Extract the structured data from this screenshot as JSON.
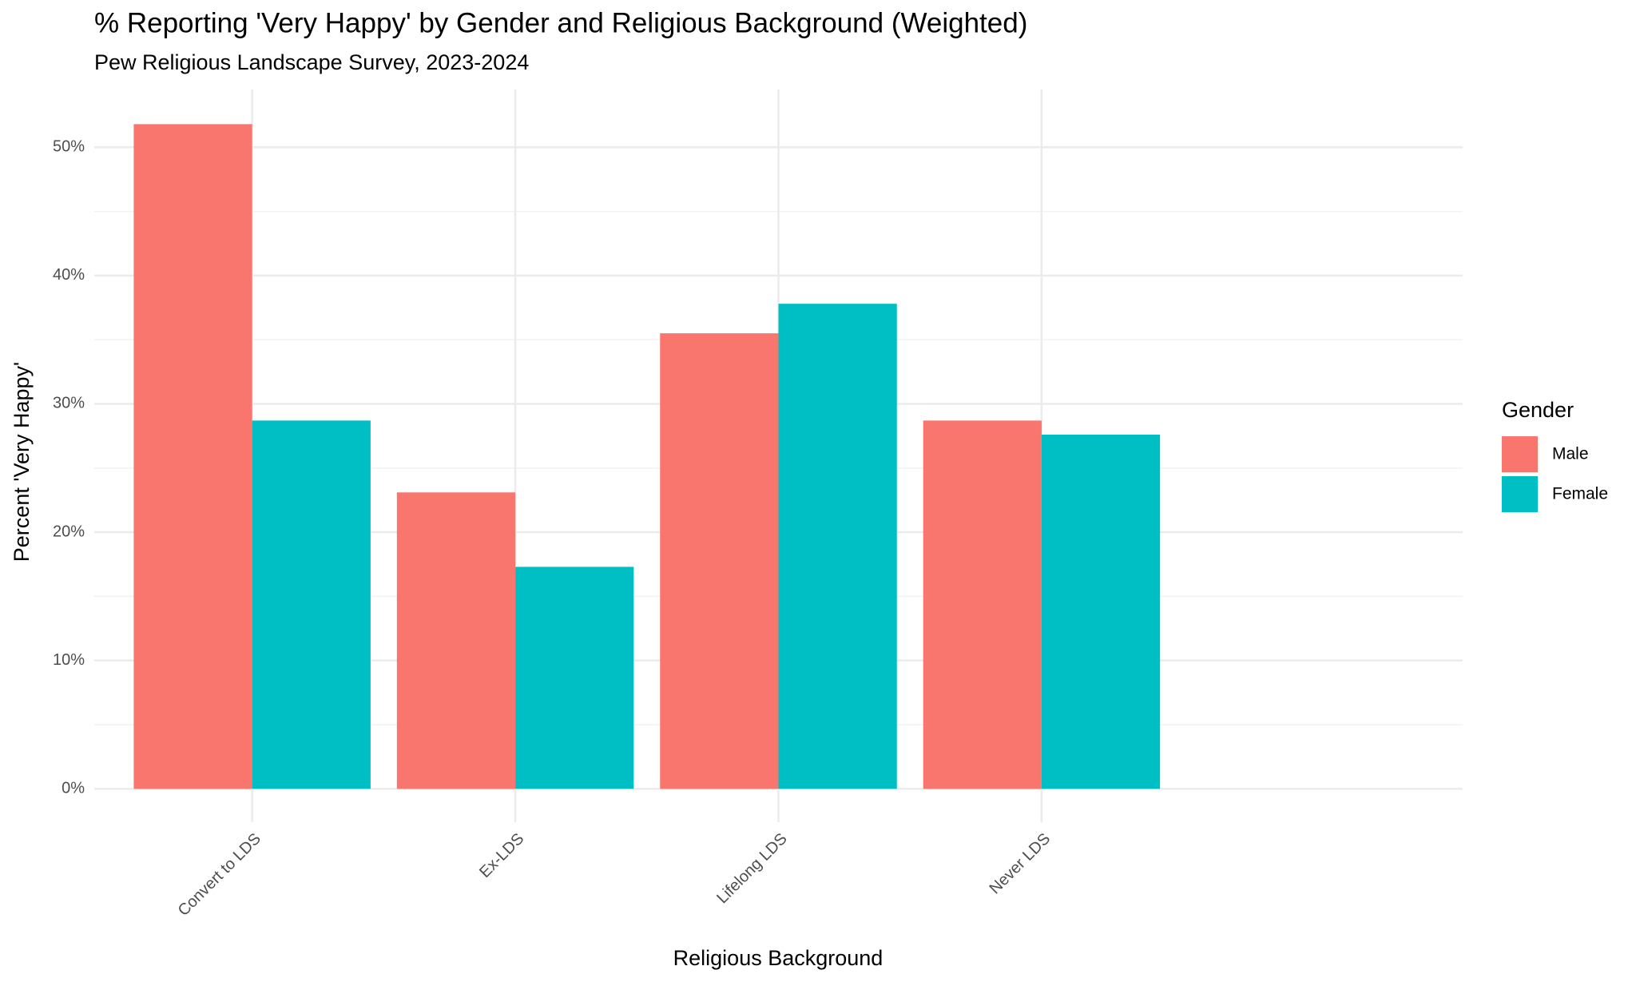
{
  "chart_data": {
    "type": "bar",
    "title": "% Reporting 'Very Happy' by Gender and Religious Background (Weighted)",
    "subtitle": "Pew Religious Landscape Survey, 2023-2024",
    "x_label": "Religious Background",
    "y_label": "Percent 'Very Happy'",
    "categories": [
      "Convert to LDS",
      "Ex-LDS",
      "Lifelong LDS",
      "Never LDS"
    ],
    "series": [
      {
        "name": "Male",
        "color": "#f8766d",
        "values": [
          51.8,
          23.1,
          35.5,
          28.7
        ]
      },
      {
        "name": "Female",
        "color": "#00bfc4",
        "values": [
          28.7,
          17.3,
          37.8,
          27.6
        ]
      }
    ],
    "legend_title": "Gender",
    "legend_position": "right",
    "ylim": [
      -2.6,
      54.5
    ],
    "yticks": [
      {
        "value": 0,
        "label": "0%"
      },
      {
        "value": 10,
        "label": "10%"
      },
      {
        "value": 20,
        "label": "20%"
      },
      {
        "value": 30,
        "label": "30%"
      },
      {
        "value": 40,
        "label": "40%"
      },
      {
        "value": 50,
        "label": "50%"
      }
    ],
    "minor_yticks": [
      5,
      15,
      25,
      35,
      45
    ],
    "grid": true
  }
}
